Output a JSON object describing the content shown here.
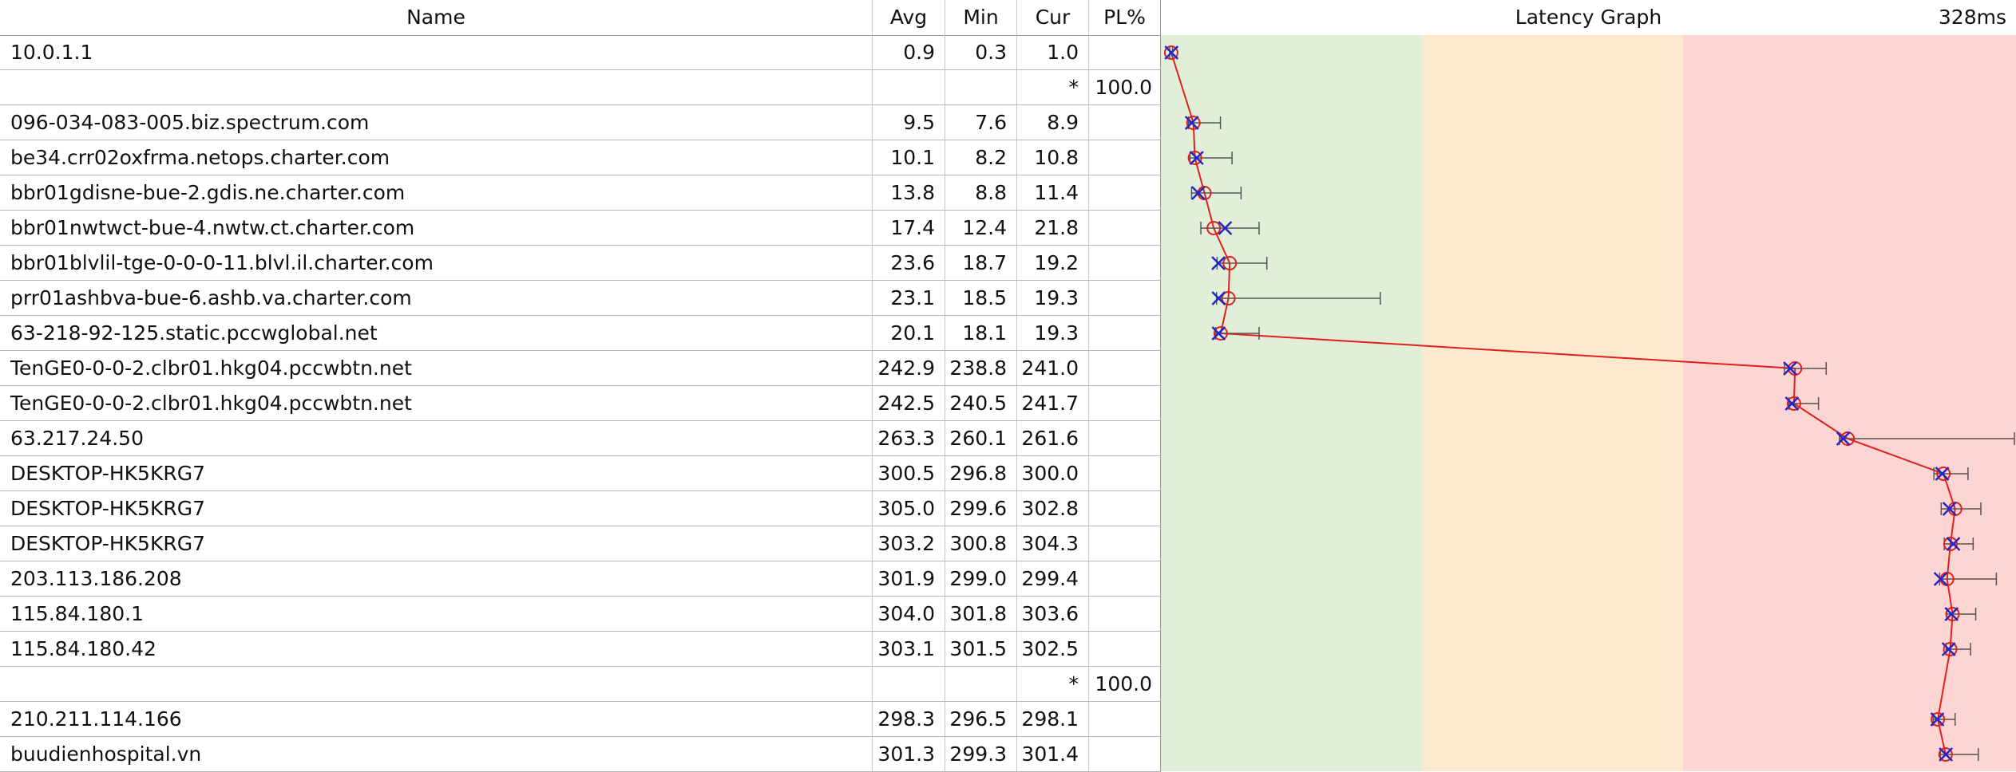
{
  "header": {
    "name": "Name",
    "avg": "Avg",
    "min": "Min",
    "cur": "Cur",
    "pl": "PL%",
    "graph_title": "Latency Graph",
    "graph_max": "328ms"
  },
  "graph": {
    "max_ms": 328,
    "zone_colors": [
      "#e1efd8",
      "#fde9cd",
      "#fdd5d2"
    ],
    "line_color": "#e0201d",
    "circle_color": "#e0201d",
    "cross_color": "#2226c8",
    "errorbar_color": "#555555"
  },
  "rows": [
    {
      "name": "10.0.1.1",
      "avg": "0.9",
      "min": "0.3",
      "cur": "1.0",
      "pl": "",
      "max": 1.4
    },
    {
      "name": "",
      "avg": "",
      "min": "",
      "cur": "*",
      "pl": "100.0",
      "lost": true
    },
    {
      "name": "096-034-083-005.biz.spectrum.com",
      "avg": "9.5",
      "min": "7.6",
      "cur": "8.9",
      "pl": "",
      "max": 20.0
    },
    {
      "name": "be34.crr02oxfrma.netops.charter.com",
      "avg": "10.1",
      "min": "8.2",
      "cur": "10.8",
      "pl": "",
      "max": 24.5
    },
    {
      "name": "bbr01gdisne-bue-2.gdis.ne.charter.com",
      "avg": "13.8",
      "min": "8.8",
      "cur": "11.4",
      "pl": "",
      "max": 28.0
    },
    {
      "name": "bbr01nwtwct-bue-4.nwtw.ct.charter.com",
      "avg": "17.4",
      "min": "12.4",
      "cur": "21.8",
      "pl": "",
      "max": 35.0
    },
    {
      "name": "bbr01blvlil-tge-0-0-0-11.blvl.il.charter.com",
      "avg": "23.6",
      "min": "18.7",
      "cur": "19.2",
      "pl": "",
      "max": 38.0
    },
    {
      "name": "prr01ashbva-bue-6.ashb.va.charter.com",
      "avg": "23.1",
      "min": "18.5",
      "cur": "19.3",
      "pl": "",
      "max": 82.0
    },
    {
      "name": "63-218-92-125.static.pccwglobal.net",
      "avg": "20.1",
      "min": "18.1",
      "cur": "19.3",
      "pl": "",
      "max": 35.0
    },
    {
      "name": "TenGE0-0-0-2.clbr01.hkg04.pccwbtn.net",
      "avg": "242.9",
      "min": "238.8",
      "cur": "241.0",
      "pl": "",
      "max": 255.0
    },
    {
      "name": "TenGE0-0-0-2.clbr01.hkg04.pccwbtn.net",
      "avg": "242.5",
      "min": "240.5",
      "cur": "241.7",
      "pl": "",
      "max": 252.0
    },
    {
      "name": "63.217.24.50",
      "avg": "263.3",
      "min": "260.1",
      "cur": "261.6",
      "pl": "",
      "max": 328.0
    },
    {
      "name": "DESKTOP-HK5KRG7",
      "avg": "300.5",
      "min": "296.8",
      "cur": "300.0",
      "pl": "",
      "max": 310.0
    },
    {
      "name": "DESKTOP-HK5KRG7",
      "avg": "305.0",
      "min": "299.6",
      "cur": "302.8",
      "pl": "",
      "max": 315.0
    },
    {
      "name": "DESKTOP-HK5KRG7",
      "avg": "303.2",
      "min": "300.8",
      "cur": "304.3",
      "pl": "",
      "max": 312.0
    },
    {
      "name": "203.113.186.208",
      "avg": "301.9",
      "min": "299.0",
      "cur": "299.4",
      "pl": "",
      "max": 321.0
    },
    {
      "name": "115.84.180.1",
      "avg": "304.0",
      "min": "301.8",
      "cur": "303.6",
      "pl": "",
      "max": 313.0
    },
    {
      "name": "115.84.180.42",
      "avg": "303.1",
      "min": "301.5",
      "cur": "302.5",
      "pl": "",
      "max": 311.0
    },
    {
      "name": "",
      "avg": "",
      "min": "",
      "cur": "*",
      "pl": "100.0",
      "lost": true
    },
    {
      "name": "210.211.114.166",
      "avg": "298.3",
      "min": "296.5",
      "cur": "298.1",
      "pl": "",
      "max": 305.0
    },
    {
      "name": "buudienhospital.vn",
      "avg": "301.3",
      "min": "299.3",
      "cur": "301.4",
      "pl": "",
      "max": 314.0
    }
  ]
}
